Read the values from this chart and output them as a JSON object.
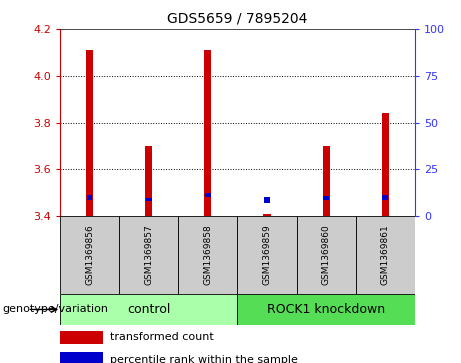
{
  "title": "GDS5659 / 7895204",
  "categories": [
    "GSM1369856",
    "GSM1369857",
    "GSM1369858",
    "GSM1369859",
    "GSM1369860",
    "GSM1369861"
  ],
  "red_values": [
    4.11,
    3.7,
    4.11,
    3.41,
    3.7,
    3.84
  ],
  "blue_values": [
    3.47,
    3.465,
    3.48,
    3.455,
    3.47,
    3.47
  ],
  "blue_heights": [
    0.018,
    0.013,
    0.018,
    0.025,
    0.016,
    0.018
  ],
  "ylim": [
    3.4,
    4.2
  ],
  "yticks_left": [
    3.4,
    3.6,
    3.8,
    4.0,
    4.2
  ],
  "yticks_right": [
    0,
    25,
    50,
    75,
    100
  ],
  "ylabel_left_color": "#cc0000",
  "ylabel_right_color": "#3333ff",
  "bar_bottom": 3.4,
  "group1_label": "control",
  "group2_label": "ROCK1 knockdown",
  "group1_indices": [
    0,
    1,
    2
  ],
  "group2_indices": [
    3,
    4,
    5
  ],
  "group1_color": "#aaffaa",
  "group2_color": "#55dd55",
  "sample_box_color": "#cccccc",
  "red_color": "#cc0000",
  "blue_color": "#0000cc",
  "legend_red": "transformed count",
  "legend_blue": "percentile rank within the sample",
  "bar_width": 0.12,
  "blue_bar_width": 0.1,
  "genotype_label": "genotype/variation"
}
